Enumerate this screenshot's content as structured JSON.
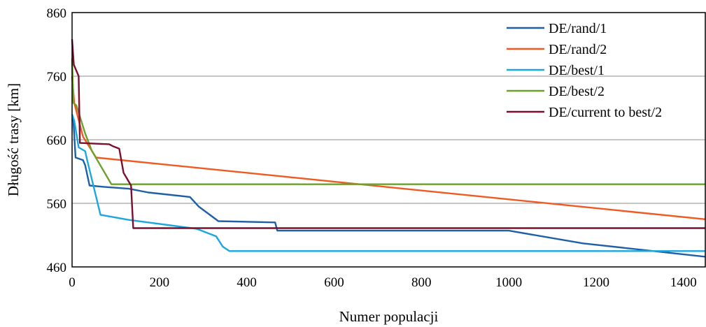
{
  "chart_data": {
    "type": "line",
    "title": "",
    "xlabel": "Numer populacji",
    "ylabel": "Długość trasy [km]",
    "xlim": [
      0,
      1450
    ],
    "ylim": [
      460,
      860
    ],
    "xticks": [
      0,
      200,
      400,
      600,
      800,
      1000,
      1200,
      1400
    ],
    "yticks": [
      460,
      560,
      660,
      760,
      860
    ],
    "grid": "horizontal",
    "legend_position": "top-right",
    "series": [
      {
        "name": "DE/rand/1",
        "color": "#1f5fa6",
        "points": [
          [
            0,
            693
          ],
          [
            3,
            690
          ],
          [
            8,
            632
          ],
          [
            25,
            628
          ],
          [
            30,
            620
          ],
          [
            40,
            588
          ],
          [
            70,
            586
          ],
          [
            130,
            583
          ],
          [
            175,
            577
          ],
          [
            270,
            570
          ],
          [
            290,
            555
          ],
          [
            335,
            532
          ],
          [
            465,
            530
          ],
          [
            470,
            517
          ],
          [
            1000,
            517
          ],
          [
            1170,
            497
          ],
          [
            1450,
            476
          ]
        ]
      },
      {
        "name": "DE/rand/2",
        "color": "#f05a22",
        "points": [
          [
            0,
            760
          ],
          [
            5,
            718
          ],
          [
            25,
            665
          ],
          [
            55,
            632
          ],
          [
            1450,
            535
          ]
        ]
      },
      {
        "name": "DE/best/1",
        "color": "#1aa7e0",
        "points": [
          [
            0,
            700
          ],
          [
            5,
            690
          ],
          [
            15,
            648
          ],
          [
            30,
            642
          ],
          [
            35,
            627
          ],
          [
            65,
            542
          ],
          [
            130,
            534
          ],
          [
            285,
            520
          ],
          [
            330,
            508
          ],
          [
            345,
            492
          ],
          [
            360,
            485
          ],
          [
            1450,
            485
          ]
        ]
      },
      {
        "name": "DE/best/2",
        "color": "#6aa12f",
        "points": [
          [
            0,
            788
          ],
          [
            3,
            718
          ],
          [
            10,
            714
          ],
          [
            30,
            670
          ],
          [
            45,
            643
          ],
          [
            90,
            590
          ],
          [
            1450,
            590
          ]
        ]
      },
      {
        "name": "DE/current to best/2",
        "color": "#7a0f2e",
        "points": [
          [
            0,
            818
          ],
          [
            4,
            778
          ],
          [
            15,
            760
          ],
          [
            18,
            655
          ],
          [
            85,
            653
          ],
          [
            93,
            650
          ],
          [
            108,
            646
          ],
          [
            118,
            608
          ],
          [
            135,
            588
          ],
          [
            140,
            521
          ],
          [
            1450,
            521
          ]
        ]
      }
    ]
  }
}
